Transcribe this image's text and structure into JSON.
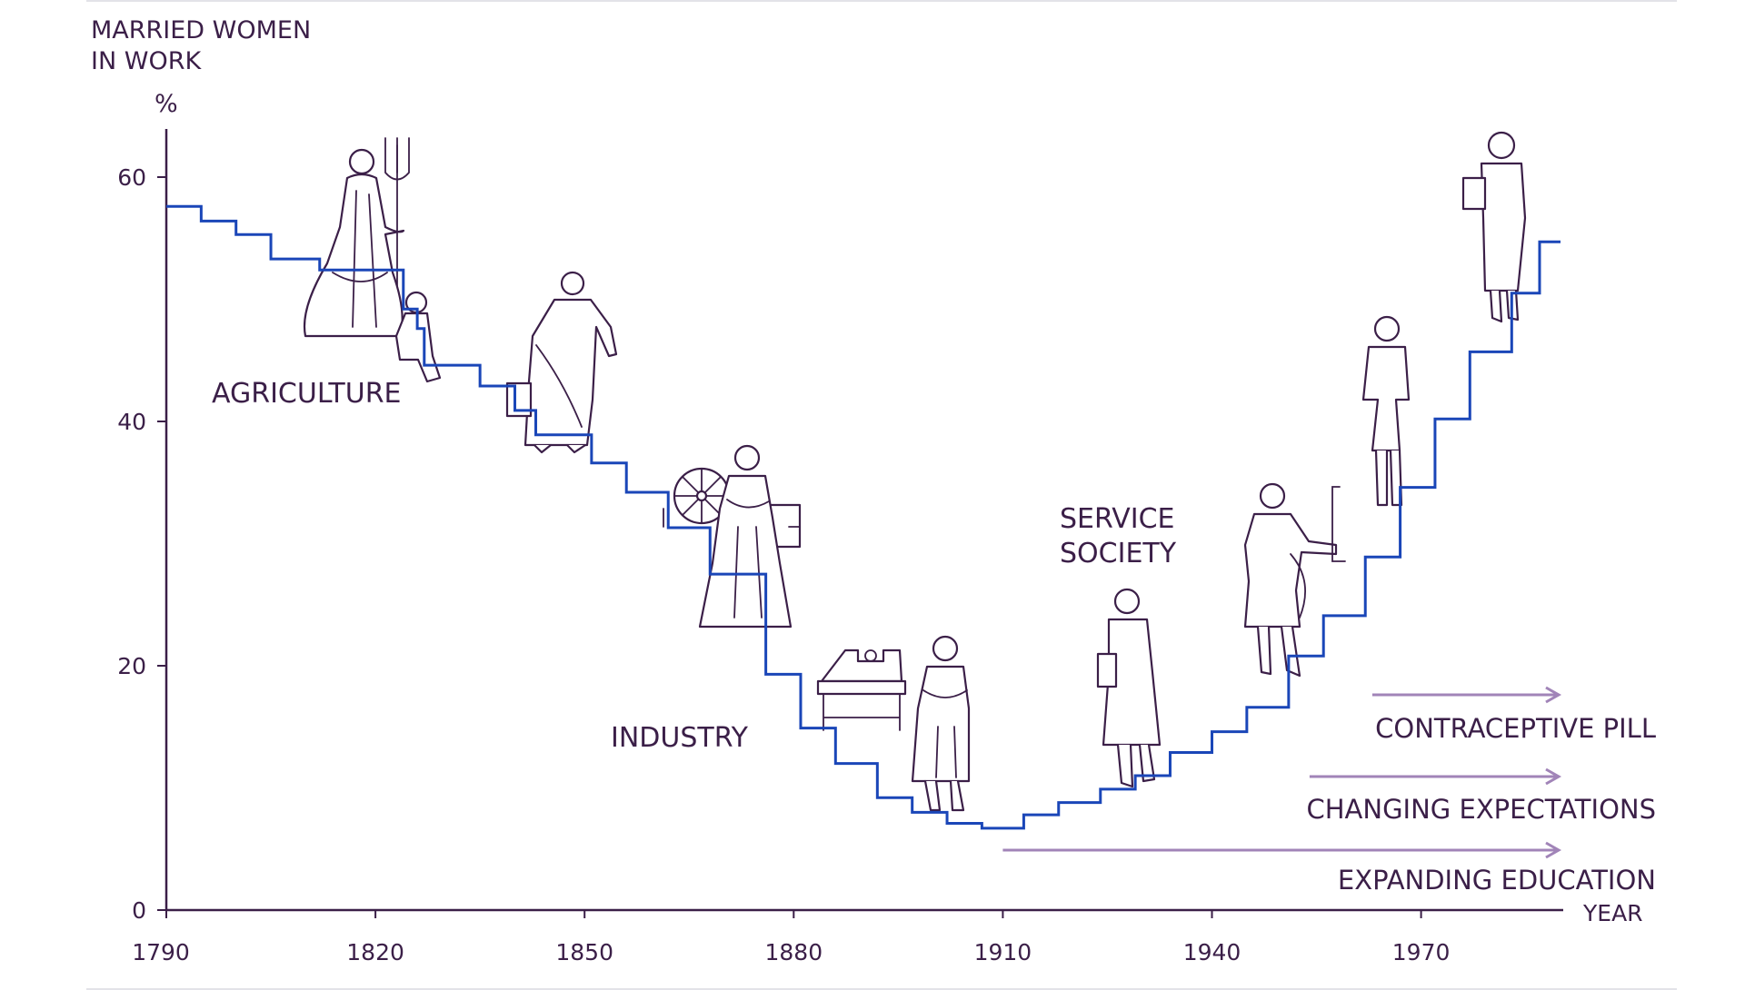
{
  "chart_data": {
    "type": "line",
    "step": true,
    "title": "MARRIED WOMEN\nIN WORK",
    "title_lines": [
      "MARRIED WOMEN",
      "IN WORK"
    ],
    "ylabel": "%",
    "xlabel": "YEAR",
    "xlim": [
      1790,
      1990
    ],
    "ylim": [
      0,
      60
    ],
    "x_ticks": [
      1790,
      1820,
      1850,
      1880,
      1910,
      1940,
      1970
    ],
    "y_ticks": [
      0,
      20,
      40,
      60
    ],
    "grid": false,
    "series": [
      {
        "color": "#1a46b8",
        "steps": [
          [
            1790,
            57.6
          ],
          [
            1795,
            56.4
          ],
          [
            1800,
            55.3
          ],
          [
            1805,
            53.3
          ],
          [
            1812,
            52.4
          ],
          [
            1824,
            49.2
          ],
          [
            1826,
            47.6
          ],
          [
            1827,
            44.6
          ],
          [
            1835,
            42.9
          ],
          [
            1840,
            40.9
          ],
          [
            1843,
            38.9
          ],
          [
            1851,
            36.6
          ],
          [
            1856,
            34.2
          ],
          [
            1862,
            31.3
          ],
          [
            1868,
            27.5
          ],
          [
            1876,
            19.3
          ],
          [
            1881,
            14.9
          ],
          [
            1886,
            12.0
          ],
          [
            1892,
            9.2
          ],
          [
            1897,
            8.0
          ],
          [
            1902,
            7.1
          ],
          [
            1907,
            6.7
          ],
          [
            1913,
            7.8
          ],
          [
            1918,
            8.8
          ],
          [
            1924,
            9.9
          ],
          [
            1929,
            11.0
          ],
          [
            1934,
            12.9
          ],
          [
            1940,
            14.6
          ],
          [
            1945,
            16.6
          ],
          [
            1951,
            20.8
          ],
          [
            1956,
            24.1
          ],
          [
            1962,
            28.9
          ],
          [
            1967,
            34.6
          ],
          [
            1972,
            40.2
          ],
          [
            1977,
            45.7
          ],
          [
            1983,
            50.5
          ],
          [
            1987,
            54.7
          ],
          [
            1990,
            54.7
          ]
        ]
      }
    ],
    "era_labels": [
      "AGRICULTURE",
      "INDUSTRY",
      "SERVICE\nSOCIETY"
    ],
    "era_label_lines": {
      "agriculture": "AGRICULTURE",
      "industry": "INDUSTRY",
      "service": [
        "SERVICE",
        "SOCIETY"
      ]
    },
    "factors": [
      {
        "label": "CONTRACEPTIVE PILL",
        "from": 1963,
        "to": 1990
      },
      {
        "label": "CHANGING EXPECTATIONS",
        "from": 1954,
        "to": 1990
      },
      {
        "label": "EXPANDING EDUCATION",
        "from": 1910,
        "to": 1990
      }
    ]
  },
  "colors": {
    "text": "#3b1f48",
    "axis": "#3b1f48",
    "line": "#1a46b8",
    "arrow": "#a184b8"
  }
}
